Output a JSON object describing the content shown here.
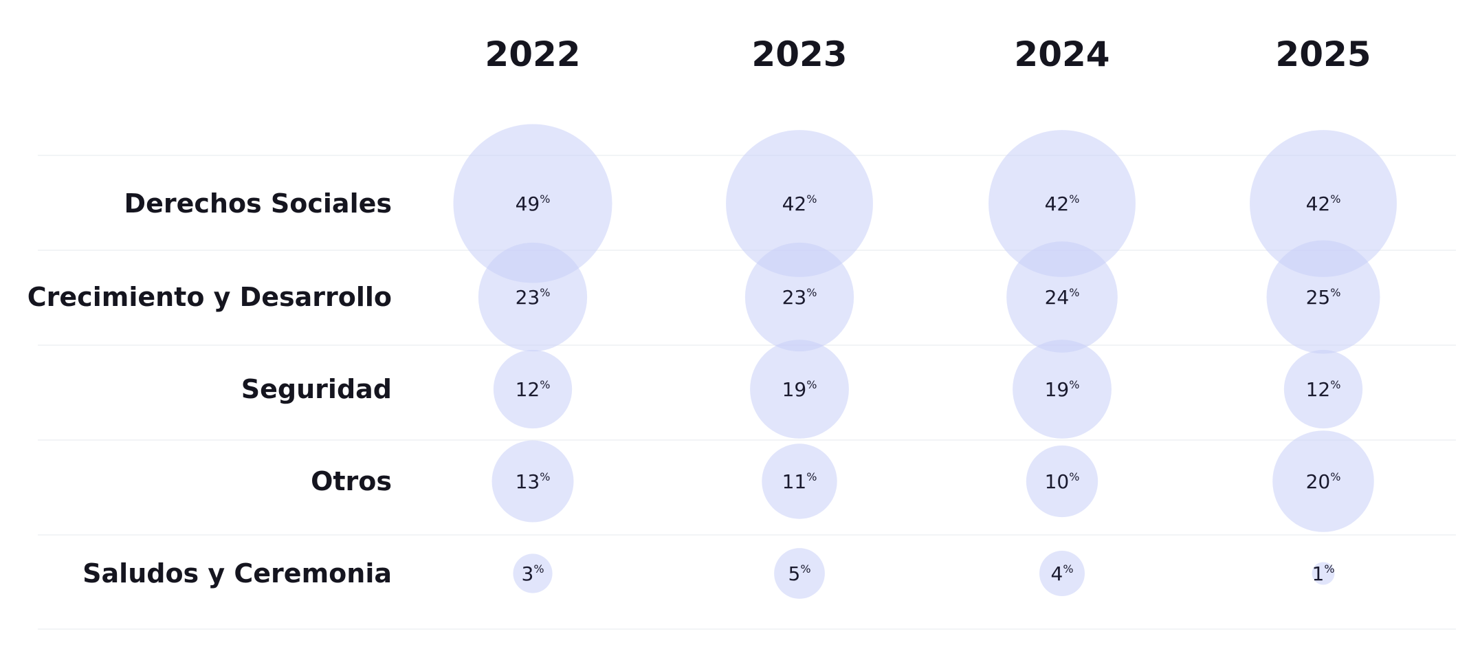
{
  "chart_data": {
    "type": "bubble-matrix",
    "columns": [
      "2022",
      "2023",
      "2024",
      "2025"
    ],
    "rows": [
      "Derechos Sociales",
      "Crecimiento y Desarrollo",
      "Seguridad",
      "Otros",
      "Saludos y Ceremonia"
    ],
    "values": [
      [
        49,
        42,
        42,
        42
      ],
      [
        23,
        23,
        24,
        25
      ],
      [
        12,
        19,
        19,
        12
      ],
      [
        13,
        11,
        10,
        20
      ],
      [
        3,
        5,
        4,
        1
      ]
    ],
    "unit": "%",
    "bubble_color": "#c9d0f7"
  }
}
